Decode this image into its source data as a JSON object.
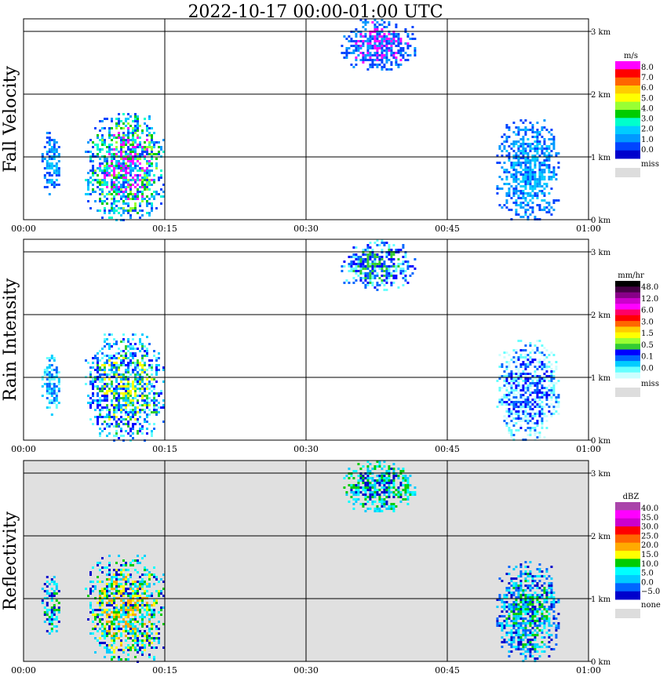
{
  "chart_data": {
    "type": "heatmap",
    "title": "2022-10-17   00:00-01:00 UTC",
    "x_ticks": [
      "00:00",
      "00:15",
      "00:30",
      "00:45",
      "01:00"
    ],
    "y_ticks": [
      "0 km",
      "1 km",
      "2 km",
      "3 km"
    ],
    "xlim": [
      "00:00",
      "01:00"
    ],
    "ylim_km": [
      0,
      3.1
    ],
    "grid": true,
    "panels": [
      {
        "ylabel": "Fall Velocity",
        "legend_unit": "m/s",
        "legend_labels": [
          "8.0",
          "7.0",
          "6.0",
          "5.0",
          "4.0",
          "3.0",
          "2.0",
          "1.0",
          "0.0"
        ],
        "legend_colors": [
          "#ff00ff",
          "#ff0000",
          "#ff6600",
          "#ffcc00",
          "#ffff00",
          "#99ff33",
          "#00cc00",
          "#00ffcc",
          "#00ccff",
          "#0099ff",
          "#0044ff",
          "#0000cc"
        ],
        "missing_label": "miss",
        "background": "#ffffff",
        "echo_regions": [
          {
            "t_start_min": 1.9,
            "t_end_min": 3.8,
            "h_low_km": 0.4,
            "h_high_km": 1.4,
            "values": [
              "#0044ff",
              "#0099ff",
              "#00ccff"
            ]
          },
          {
            "t_start_min": 6.5,
            "t_end_min": 15.0,
            "h_low_km": 0.0,
            "h_high_km": 1.7,
            "values": [
              "#0044ff",
              "#0099ff",
              "#00ccff",
              "#00ffcc",
              "#00cc00",
              "#99ff33",
              "#ff00ff"
            ]
          },
          {
            "t_start_min": 33.7,
            "t_end_min": 41.5,
            "h_low_km": 2.4,
            "h_high_km": 3.2,
            "values": [
              "#0044ff",
              "#0099ff",
              "#ff00ff"
            ]
          },
          {
            "t_start_min": 50.2,
            "t_end_min": 56.8,
            "h_low_km": 0.0,
            "h_high_km": 1.6,
            "values": [
              "#0044ff",
              "#0099ff",
              "#00ccff"
            ]
          }
        ]
      },
      {
        "ylabel": "Rain Intensity",
        "legend_unit": "mm/hr",
        "legend_labels": [
          "48.0",
          "12.0",
          "6.0",
          "3.0",
          "1.5",
          "0.5",
          "0.1",
          "0.0"
        ],
        "legend_colors": [
          "#000000",
          "#440044",
          "#880088",
          "#cc00cc",
          "#ff00ff",
          "#ff0066",
          "#ff0000",
          "#ff6600",
          "#ffcc00",
          "#ffff00",
          "#99ff33",
          "#33cc33",
          "#0000ff",
          "#0066ff",
          "#00ccff",
          "#66ffff",
          "#ccffff"
        ],
        "missing_label": "miss",
        "background": "#ffffff",
        "echo_regions": [
          {
            "t_start_min": 1.9,
            "t_end_min": 3.8,
            "h_low_km": 0.4,
            "h_high_km": 1.4,
            "values": [
              "#66ffff",
              "#00ccff",
              "#0066ff"
            ]
          },
          {
            "t_start_min": 6.5,
            "t_end_min": 15.0,
            "h_low_km": 0.0,
            "h_high_km": 1.7,
            "values": [
              "#66ffff",
              "#00ccff",
              "#0066ff",
              "#0000ff",
              "#33cc33",
              "#ffff00"
            ]
          },
          {
            "t_start_min": 33.7,
            "t_end_min": 41.5,
            "h_low_km": 2.4,
            "h_high_km": 3.2,
            "values": [
              "#66ffff",
              "#0066ff",
              "#0000ff",
              "#33cc33"
            ]
          },
          {
            "t_start_min": 50.2,
            "t_end_min": 56.8,
            "h_low_km": 0.0,
            "h_high_km": 1.6,
            "values": [
              "#ccffff",
              "#66ffff",
              "#0066ff",
              "#0000ff"
            ]
          }
        ]
      },
      {
        "ylabel": "Reflectivity",
        "legend_unit": "dBZ",
        "legend_labels": [
          "40.0",
          "35.0",
          "30.0",
          "25.0",
          "20.0",
          "15.0",
          "10.0",
          "5.0",
          "0.0",
          "−5.0"
        ],
        "legend_colors": [
          "#aa44aa",
          "#ff00ff",
          "#cc00cc",
          "#ff0000",
          "#ff6600",
          "#ffaa00",
          "#ffff00",
          "#00cc00",
          "#00ffff",
          "#00ccff",
          "#0066ff",
          "#0000cc"
        ],
        "missing_label": "none",
        "background": "#e0e0e0",
        "echo_regions": [
          {
            "t_start_min": 1.9,
            "t_end_min": 3.8,
            "h_low_km": 0.4,
            "h_high_km": 1.4,
            "values": [
              "#0000cc",
              "#00ccff",
              "#00ffff",
              "#00cc00"
            ]
          },
          {
            "t_start_min": 6.5,
            "t_end_min": 15.0,
            "h_low_km": 0.0,
            "h_high_km": 1.7,
            "values": [
              "#0000cc",
              "#00ccff",
              "#00ffff",
              "#00cc00",
              "#ffff00",
              "#ffaa00"
            ]
          },
          {
            "t_start_min": 33.7,
            "t_end_min": 41.5,
            "h_low_km": 2.4,
            "h_high_km": 3.2,
            "values": [
              "#00ffff",
              "#00ccff",
              "#00cc00",
              "#0000cc"
            ]
          },
          {
            "t_start_min": 50.2,
            "t_end_min": 56.8,
            "h_low_km": 0.0,
            "h_high_km": 1.6,
            "values": [
              "#0000cc",
              "#0066ff",
              "#00ccff",
              "#00ffff",
              "#00cc00"
            ]
          }
        ]
      }
    ]
  }
}
